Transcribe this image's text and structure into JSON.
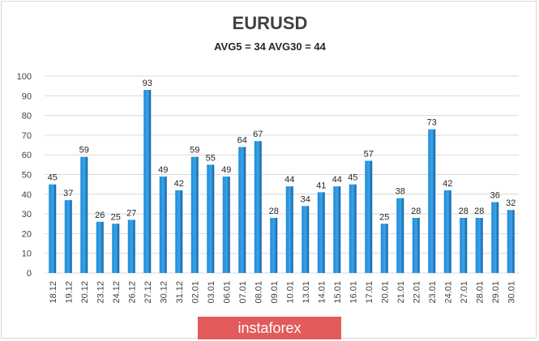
{
  "chart_data": {
    "type": "bar",
    "title": "EURUSD",
    "subtitle": "AVG5 = 34 AVG30 = 44",
    "categories": [
      "18.12",
      "19.12",
      "20.12",
      "23.12",
      "24.12",
      "26.12",
      "27.12",
      "30.12",
      "31.12",
      "02.01",
      "03.01",
      "06.01",
      "07.01",
      "08.01",
      "09.01",
      "10.01",
      "13.01",
      "14.01",
      "15.01",
      "16.01",
      "17.01",
      "20.01",
      "21.01",
      "22.01",
      "23.01",
      "24.01",
      "27.01",
      "28.01",
      "29.01",
      "30.01"
    ],
    "values": [
      45,
      37,
      59,
      26,
      25,
      27,
      93,
      49,
      42,
      59,
      55,
      49,
      64,
      67,
      28,
      44,
      34,
      41,
      44,
      45,
      57,
      25,
      38,
      28,
      73,
      42,
      28,
      28,
      36,
      32
    ],
    "ylim": [
      0,
      100
    ],
    "yticks": [
      0,
      10,
      20,
      30,
      40,
      50,
      60,
      70,
      80,
      90,
      100
    ],
    "grid": true,
    "legend": "none",
    "colors": {
      "bar": "#1f8bd6",
      "bar_dark": "#0d5fa3",
      "grid": "#d9d9d9"
    }
  },
  "watermark": {
    "text": "instaforex",
    "color": "#e35a5a"
  }
}
